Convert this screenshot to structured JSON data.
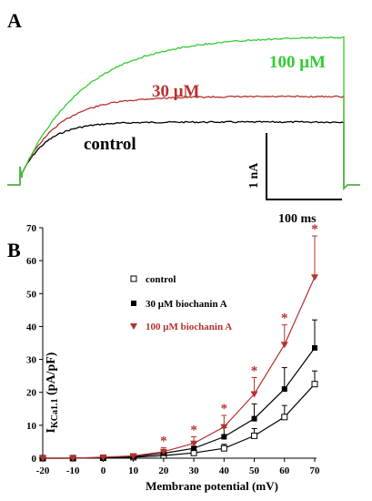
{
  "colors": {
    "control": "#000000",
    "mid": "#b5322e",
    "high": "#33cc33",
    "axis": "#000000"
  },
  "panel_a": {
    "label": "A",
    "trace_labels": {
      "high": "100 μM",
      "mid": "30 μM",
      "control": "control"
    },
    "scale_bar": {
      "current_label": "1 nA",
      "time_label": "100 ms"
    }
  },
  "panel_b": {
    "label": "B",
    "ylabel_main": "I",
    "ylabel_sub": "KCa1.1",
    "ylabel_unit": " (pA/pF)",
    "legend": {
      "control": "control",
      "mid_prefix": "30 μM ",
      "mid_suffix": "biochanin A",
      "high_prefix": "100 μM ",
      "high_suffix": "biochanin A"
    },
    "significance_marker": "*"
  },
  "chart_data": {
    "type": "line",
    "xlabel": "Membrane potential (mV)",
    "x": [
      -20,
      -10,
      0,
      10,
      20,
      30,
      40,
      50,
      60,
      70
    ],
    "xticks": [
      "-20",
      "-10",
      "0",
      "10",
      "20",
      "30",
      "40",
      "50",
      "60",
      "70"
    ],
    "yticks": [
      "0",
      "10",
      "20",
      "30",
      "40",
      "50",
      "60",
      "70"
    ],
    "xlim": [
      -20,
      70
    ],
    "ylim": [
      0,
      70
    ],
    "legend_position": "upper-left",
    "series": [
      {
        "name": "control",
        "marker": "open-square",
        "values": [
          0,
          0,
          0.1,
          0.3,
          0.8,
          1.6,
          3.0,
          6.8,
          12.5,
          22.5
        ],
        "errors": [
          0,
          0,
          0,
          0.2,
          0.5,
          0.8,
          1.2,
          2.2,
          3.5,
          4.0
        ]
      },
      {
        "name": "30 μM biochanin A",
        "marker": "filled-square",
        "values": [
          0,
          0,
          0.2,
          0.5,
          1.5,
          3.0,
          6.5,
          12.0,
          21.0,
          33.5
        ],
        "errors": [
          0,
          0,
          0,
          0.3,
          0.8,
          1.5,
          2.8,
          4.5,
          6.5,
          8.5
        ]
      },
      {
        "name": "100 μM biochanin A",
        "marker": "filled-triangle-down",
        "values": [
          0,
          0,
          0.3,
          0.7,
          2.0,
          4.5,
          9.5,
          19.5,
          34.5,
          55.0
        ],
        "errors": [
          0,
          0,
          0,
          0.4,
          1.2,
          2.0,
          3.5,
          5.0,
          6.0,
          12.5
        ]
      }
    ],
    "significant_x": [
      20,
      30,
      40,
      50,
      60,
      70
    ]
  }
}
